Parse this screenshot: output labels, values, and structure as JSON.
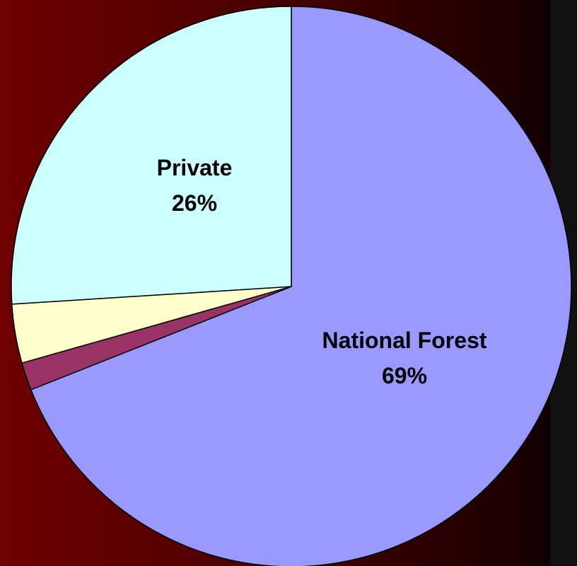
{
  "chart_data": {
    "type": "pie",
    "slices": [
      {
        "name": "National Forest",
        "value": 69,
        "label": "National Forest",
        "pct_text": "69%",
        "color": "#9999ff",
        "show_label": true
      },
      {
        "name": "",
        "value": 1.6,
        "label": "",
        "pct_text": "",
        "color": "#993366",
        "show_label": false
      },
      {
        "name": "",
        "value": 3.4,
        "label": "",
        "pct_text": "",
        "color": "#ffffcc",
        "show_label": false
      },
      {
        "name": "Private",
        "value": 26,
        "label": "Private",
        "pct_text": "26%",
        "color": "#ccffff",
        "show_label": true
      }
    ],
    "start_angle_deg": 0,
    "direction": "clockwise",
    "stroke_color": "#000000",
    "legend": "none"
  }
}
